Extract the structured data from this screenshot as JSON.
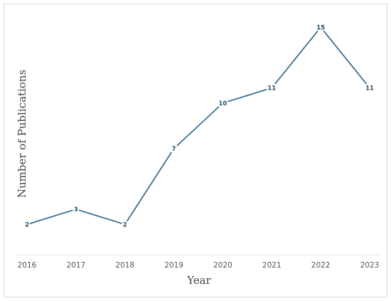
{
  "chart_data": {
    "type": "line",
    "x_label": "Year",
    "y_label": "Number of Publications",
    "categories": [
      "2016",
      "2017",
      "2018",
      "2019",
      "2020",
      "2021",
      "2022",
      "2023"
    ],
    "values": [
      2,
      3,
      2,
      7,
      10,
      11,
      15,
      11
    ],
    "color": "#3b6e8f",
    "ylim": [
      0,
      16
    ]
  }
}
